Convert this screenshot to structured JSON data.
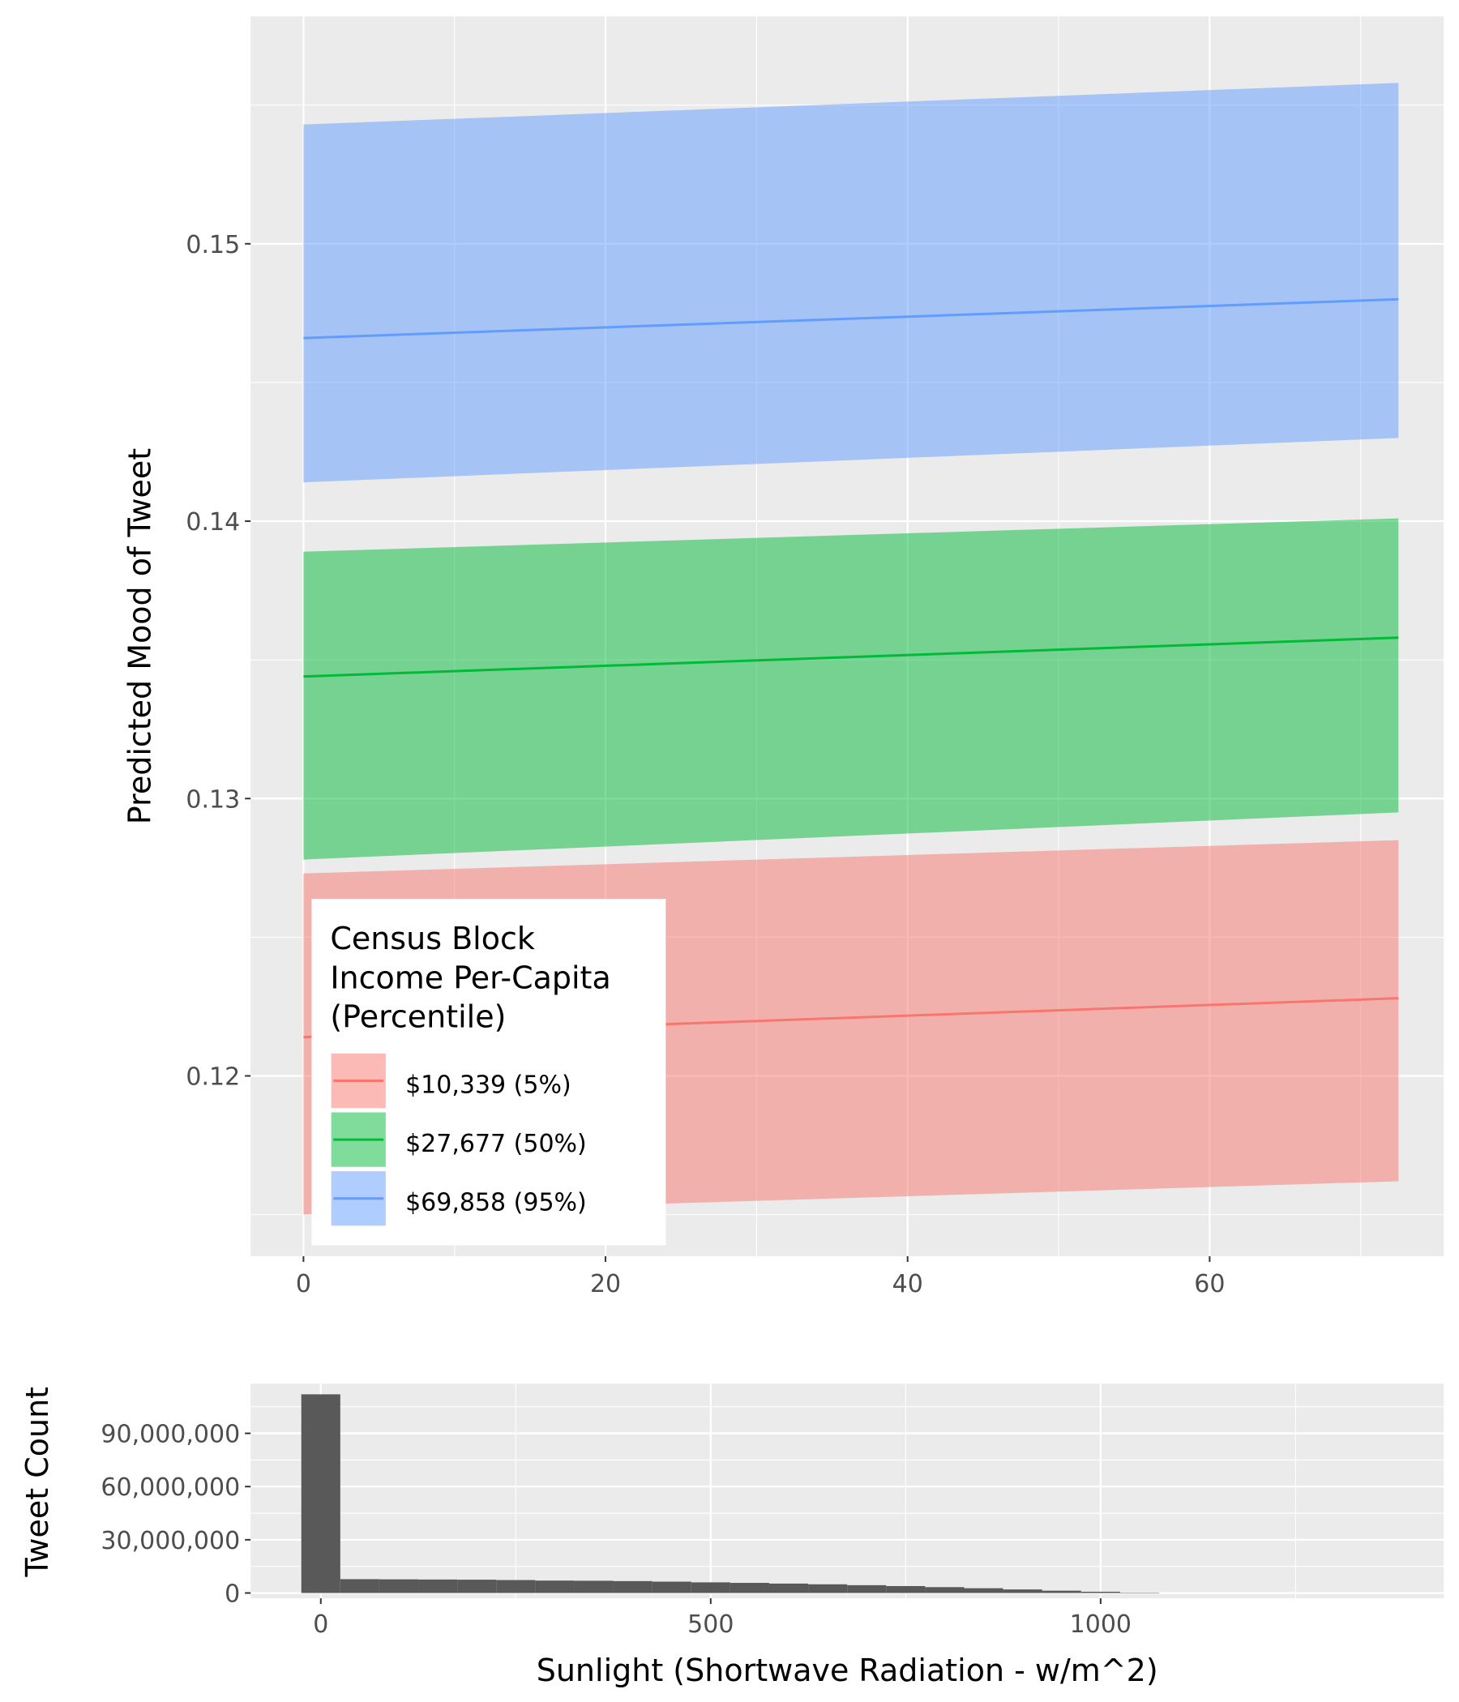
{
  "chart_data": [
    {
      "type": "line",
      "ylabel": "Predicted Mood of Tweet",
      "xlabel": "",
      "xlim": [
        -3.5,
        75.5
      ],
      "ylim": [
        0.1135,
        0.1582
      ],
      "x_ticks": [
        0,
        20,
        40,
        60
      ],
      "y_ticks": [
        0.12,
        0.13,
        0.14,
        0.15
      ],
      "y_tick_labels": [
        "0.12",
        "0.13",
        "0.14",
        "0.15"
      ],
      "grid": true,
      "x_range": [
        0,
        72.5
      ],
      "legend": {
        "title_lines": [
          "Census Block",
          "Income Per-Capita",
          "(Percentile)"
        ],
        "placement": "inside bottom-left"
      },
      "series": [
        {
          "name": "$10,339 (5%)",
          "color": "#F8766D",
          "fill": "#F8766D",
          "fit": [
            0.1214,
            0.1228
          ],
          "lower": [
            0.115,
            0.1162
          ],
          "upper": [
            0.1273,
            0.1285
          ]
        },
        {
          "name": "$27,677 (50%)",
          "color": "#00BA38",
          "fill": "#00BA38",
          "fit": [
            0.1344,
            0.1358
          ],
          "lower": [
            0.1278,
            0.1295
          ],
          "upper": [
            0.1389,
            0.1401
          ]
        },
        {
          "name": "$69,858 (95%)",
          "color": "#619CFF",
          "fill": "#619CFF",
          "fit": [
            0.1466,
            0.148
          ],
          "lower": [
            0.1414,
            0.143
          ],
          "upper": [
            0.1543,
            0.1558
          ]
        }
      ]
    },
    {
      "type": "bar",
      "subtype": "histogram",
      "xlabel": "Sunlight (Shortwave Radiation - w/m^2)",
      "ylabel": "Tweet Count",
      "xlim": [
        -90,
        1440
      ],
      "ylim": [
        -3000000,
        118000000
      ],
      "x_ticks": [
        0,
        500,
        1000
      ],
      "x_tick_labels": [
        "0",
        "500",
        "1000"
      ],
      "y_ticks": [
        0,
        30000000,
        60000000,
        90000000
      ],
      "y_tick_labels": [
        "0",
        "30,000,000",
        "60,000,000",
        "90,000,000"
      ],
      "grid": true,
      "bar_color": "#595959",
      "bins": [
        {
          "x0": -25,
          "x1": 25,
          "count": 112000000
        },
        {
          "x0": 25,
          "x1": 75,
          "count": 7800000
        },
        {
          "x0": 75,
          "x1": 125,
          "count": 7700000
        },
        {
          "x0": 125,
          "x1": 175,
          "count": 7600000
        },
        {
          "x0": 175,
          "x1": 225,
          "count": 7500000
        },
        {
          "x0": 225,
          "x1": 275,
          "count": 7300000
        },
        {
          "x0": 275,
          "x1": 325,
          "count": 7000000
        },
        {
          "x0": 325,
          "x1": 375,
          "count": 6900000
        },
        {
          "x0": 375,
          "x1": 425,
          "count": 6700000
        },
        {
          "x0": 425,
          "x1": 475,
          "count": 6400000
        },
        {
          "x0": 475,
          "x1": 525,
          "count": 6000000
        },
        {
          "x0": 525,
          "x1": 575,
          "count": 5700000
        },
        {
          "x0": 575,
          "x1": 625,
          "count": 5300000
        },
        {
          "x0": 625,
          "x1": 675,
          "count": 4900000
        },
        {
          "x0": 675,
          "x1": 725,
          "count": 4400000
        },
        {
          "x0": 725,
          "x1": 775,
          "count": 3900000
        },
        {
          "x0": 775,
          "x1": 825,
          "count": 3300000
        },
        {
          "x0": 825,
          "x1": 875,
          "count": 2700000
        },
        {
          "x0": 875,
          "x1": 925,
          "count": 2000000
        },
        {
          "x0": 925,
          "x1": 975,
          "count": 1300000
        },
        {
          "x0": 975,
          "x1": 1025,
          "count": 700000
        },
        {
          "x0": 1025,
          "x1": 1075,
          "count": 200000
        }
      ]
    }
  ]
}
